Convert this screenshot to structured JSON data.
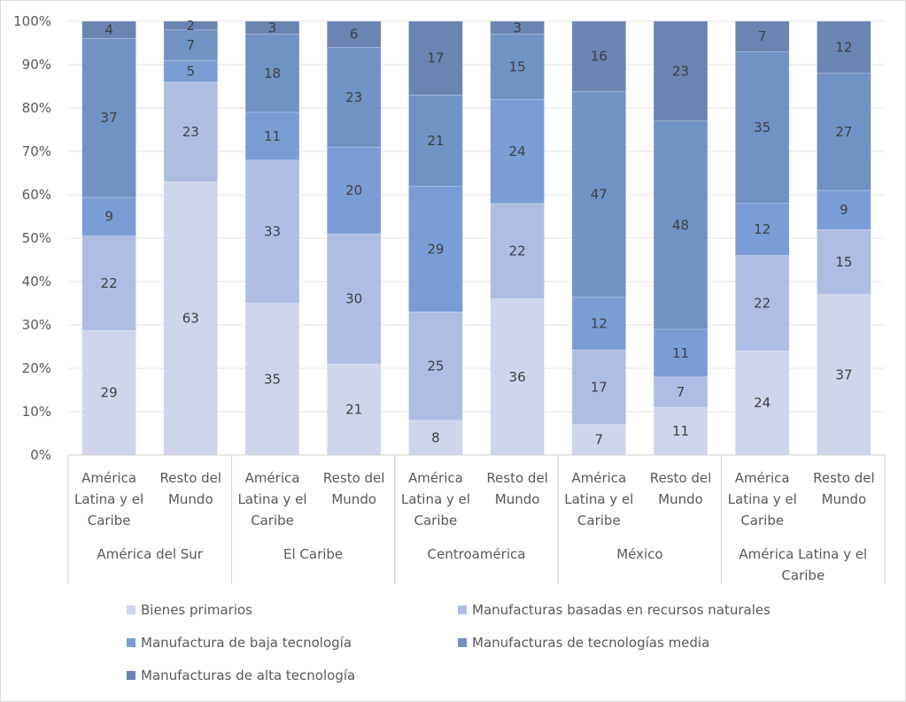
{
  "chart_data": {
    "type": "bar",
    "stacked": "percent",
    "title": "",
    "xlabel": "",
    "ylabel": "",
    "ylim": [
      0,
      100
    ],
    "y_ticks": [
      "0%",
      "10%",
      "20%",
      "30%",
      "40%",
      "50%",
      "60%",
      "70%",
      "80%",
      "90%",
      "100%"
    ],
    "grid": true,
    "legend_position": "bottom",
    "groups": [
      {
        "name": "América del Sur",
        "categories": [
          "América Latina y el Caribe",
          "Resto del Mundo"
        ]
      },
      {
        "name": "El Caribe",
        "categories": [
          "América Latina y el Caribe",
          "Resto del Mundo"
        ]
      },
      {
        "name": "Centroamérica",
        "categories": [
          "América Latina y el Caribe",
          "Resto del Mundo"
        ]
      },
      {
        "name": "México",
        "categories": [
          "América Latina y el Caribe",
          "Resto del Mundo"
        ]
      },
      {
        "name": "América Latina y el Caribe",
        "categories": [
          "América Latina y el Caribe",
          "Resto del Mundo"
        ]
      }
    ],
    "category_label_lines": {
      "América Latina y el Caribe": [
        "América",
        "Latina y el",
        "Caribe"
      ],
      "Resto del Mundo": [
        "Resto del",
        "Mundo"
      ]
    },
    "group_label_lines": {
      "América del Sur": [
        "América del Sur"
      ],
      "El Caribe": [
        "El Caribe"
      ],
      "Centroamérica": [
        "Centroamérica"
      ],
      "México": [
        "México"
      ],
      "América Latina y el Caribe": [
        "América Latina y el",
        "Caribe"
      ]
    },
    "series": [
      {
        "name": "Bienes primarios",
        "color": "#cfd5ea",
        "values": [
          29,
          63,
          35,
          21,
          8,
          36,
          7,
          11,
          24,
          37
        ]
      },
      {
        "name": "Manufacturas basadas en recursos naturales",
        "color": "#afbde3",
        "values": [
          22,
          23,
          33,
          30,
          25,
          22,
          17,
          7,
          22,
          15
        ]
      },
      {
        "name": "Manufactura de baja tecnología",
        "color": "#7a9dd6",
        "values": [
          9,
          5,
          11,
          20,
          29,
          24,
          12,
          11,
          12,
          9
        ]
      },
      {
        "name": "Manufacturas de tecnologías media",
        "color": "#7192c4",
        "values": [
          37,
          7,
          18,
          23,
          21,
          15,
          47,
          48,
          35,
          27
        ]
      },
      {
        "name": "Manufacturas de alta tecnología",
        "color": "#6b84b1",
        "values": [
          4,
          2,
          3,
          6,
          17,
          3,
          16,
          23,
          7,
          12
        ]
      }
    ]
  }
}
